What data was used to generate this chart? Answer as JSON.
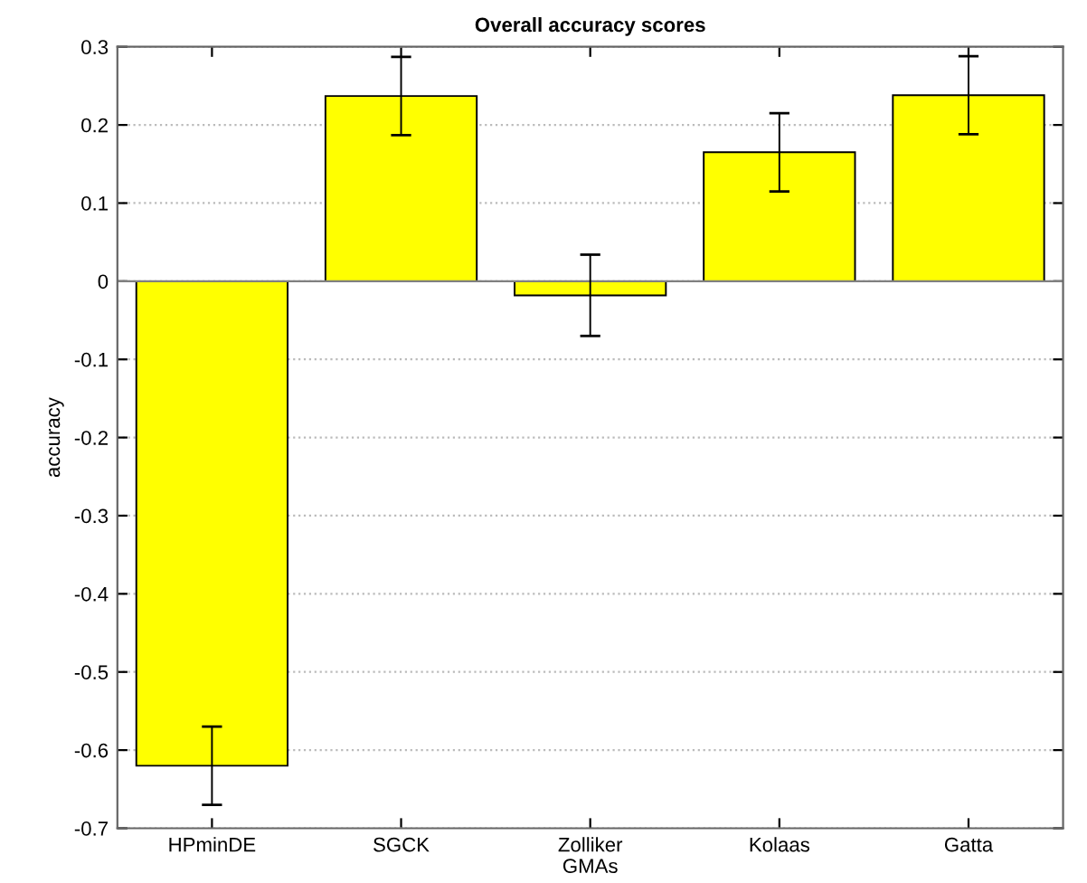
{
  "chart_data": {
    "type": "bar",
    "title": "Overall accuracy scores",
    "xlabel": "GMAs",
    "ylabel": "accuracy",
    "categories": [
      "HPminDE",
      "SGCK",
      "Zolliker",
      "Kolaas",
      "Gatta"
    ],
    "values": [
      -0.62,
      0.237,
      -0.018,
      0.165,
      0.238
    ],
    "errors": [
      0.05,
      0.05,
      0.052,
      0.05,
      0.05
    ],
    "color": "#ffff00",
    "ylim": [
      -0.7,
      0.3
    ],
    "yticks": [
      -0.7,
      -0.6,
      -0.5,
      -0.4,
      -0.3,
      -0.2,
      -0.1,
      0,
      0.1,
      0.2,
      0.3
    ],
    "grid": "y"
  }
}
